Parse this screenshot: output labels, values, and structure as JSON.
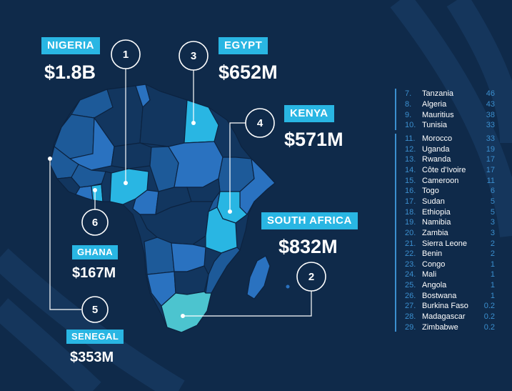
{
  "colors": {
    "background": "#0f2a4a",
    "highlight": "#29b6e3",
    "highlight_south": "#4cc4cf",
    "map_dark": "#12365f",
    "map_mid": "#1d5a99",
    "map_bright": "#2a72c0",
    "rank_accent": "#3b8fcf"
  },
  "countries": [
    {
      "rank": "1",
      "name": "NIGERIA",
      "value": "$1.8B"
    },
    {
      "rank": "2",
      "name": "SOUTH AFRICA",
      "value": "$832M"
    },
    {
      "rank": "3",
      "name": "EGYPT",
      "value": "$652M"
    },
    {
      "rank": "4",
      "name": "KENYA",
      "value": "$571M"
    },
    {
      "rank": "5",
      "name": "SENEGAL",
      "value": "$353M"
    },
    {
      "rank": "6",
      "name": "GHANA",
      "value": "$167M"
    }
  ],
  "ranking_group_a": [
    {
      "rank": "7.",
      "name": "Tanzania",
      "value": "46"
    },
    {
      "rank": "8.",
      "name": "Algeria",
      "value": "43"
    },
    {
      "rank": "9.",
      "name": "Mauritius",
      "value": "38"
    },
    {
      "rank": "10.",
      "name": "Tunisia",
      "value": "33"
    }
  ],
  "ranking_group_b": [
    {
      "rank": "11.",
      "name": "Morocco",
      "value": "33"
    },
    {
      "rank": "12.",
      "name": "Uganda",
      "value": "19"
    },
    {
      "rank": "13.",
      "name": "Rwanda",
      "value": "17"
    },
    {
      "rank": "14.",
      "name": "Côte d'Ivoire",
      "value": "17"
    },
    {
      "rank": "15.",
      "name": "Cameroon",
      "value": "11"
    },
    {
      "rank": "16.",
      "name": "Togo",
      "value": "6"
    },
    {
      "rank": "17.",
      "name": "Sudan",
      "value": "5"
    },
    {
      "rank": "18.",
      "name": "Ethiopia",
      "value": "5"
    },
    {
      "rank": "19.",
      "name": "Namibia",
      "value": "3"
    },
    {
      "rank": "20.",
      "name": "Zambia",
      "value": "3"
    },
    {
      "rank": "21.",
      "name": "Sierra Leone",
      "value": "2"
    },
    {
      "rank": "22.",
      "name": "Benin",
      "value": "2"
    },
    {
      "rank": "23.",
      "name": "Congo",
      "value": "1"
    },
    {
      "rank": "24.",
      "name": "Mali",
      "value": "1"
    },
    {
      "rank": "25.",
      "name": "Angola",
      "value": "1"
    },
    {
      "rank": "26.",
      "name": "Bostwana",
      "value": "1"
    },
    {
      "rank": "27.",
      "name": "Burkina Faso",
      "value": "0.2"
    },
    {
      "rank": "28.",
      "name": "Madagascar",
      "value": "0.2"
    },
    {
      "rank": "29.",
      "name": "Zimbabwe",
      "value": "0.2"
    }
  ]
}
